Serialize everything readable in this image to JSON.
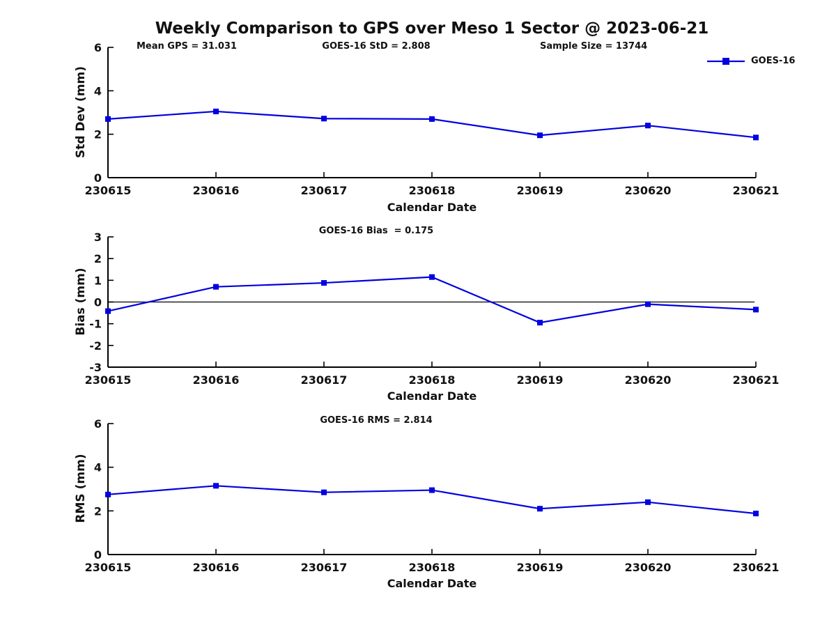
{
  "figure": {
    "title": "Weekly Comparison to GPS over Meso 1 Sector @ 2023-06-21",
    "annotations": {
      "mean_gps": "Mean GPS = 31.031",
      "goes16_std": "GOES-16 StD = 2.808",
      "sample_size": "Sample Size = 13744"
    },
    "legend": {
      "label": "GOES-16",
      "position": "northeast",
      "series_color": "#0000e0"
    }
  },
  "chart_data": [
    {
      "type": "line",
      "title": "",
      "ylabel": "Std Dev (mm)",
      "xlabel": "Calendar Date",
      "categories": [
        "230615",
        "230616",
        "230617",
        "230618",
        "230619",
        "230620",
        "230621"
      ],
      "series": [
        {
          "name": "GOES-16",
          "color": "#0000e0",
          "marker": "square",
          "values": [
            2.7,
            3.05,
            2.72,
            2.7,
            1.95,
            2.4,
            1.85
          ]
        }
      ],
      "ylim": [
        0,
        6
      ],
      "yticks": [
        0,
        2,
        4,
        6
      ],
      "zero_line": false,
      "grid": false
    },
    {
      "type": "line",
      "title": "GOES-16 Bias  = 0.175",
      "ylabel": "Bias (mm)",
      "xlabel": "Calendar Date",
      "categories": [
        "230615",
        "230616",
        "230617",
        "230618",
        "230619",
        "230620",
        "230621"
      ],
      "series": [
        {
          "name": "GOES-16",
          "color": "#0000e0",
          "marker": "square",
          "values": [
            -0.42,
            0.7,
            0.88,
            1.15,
            -0.95,
            -0.1,
            -0.35
          ]
        }
      ],
      "ylim": [
        -3,
        3
      ],
      "yticks": [
        3,
        2,
        1,
        0,
        -1,
        -2,
        -3
      ],
      "zero_line": true,
      "grid": false
    },
    {
      "type": "line",
      "title": "GOES-16 RMS = 2.814",
      "ylabel": "RMS (mm)",
      "xlabel": "Calendar Date",
      "categories": [
        "230615",
        "230616",
        "230617",
        "230618",
        "230619",
        "230620",
        "230621"
      ],
      "series": [
        {
          "name": "GOES-16",
          "color": "#0000e0",
          "marker": "square",
          "values": [
            2.75,
            3.15,
            2.85,
            2.95,
            2.1,
            2.4,
            1.88
          ]
        }
      ],
      "ylim": [
        0,
        6
      ],
      "yticks": [
        0,
        2,
        4,
        6
      ],
      "zero_line": false,
      "grid": false
    }
  ]
}
